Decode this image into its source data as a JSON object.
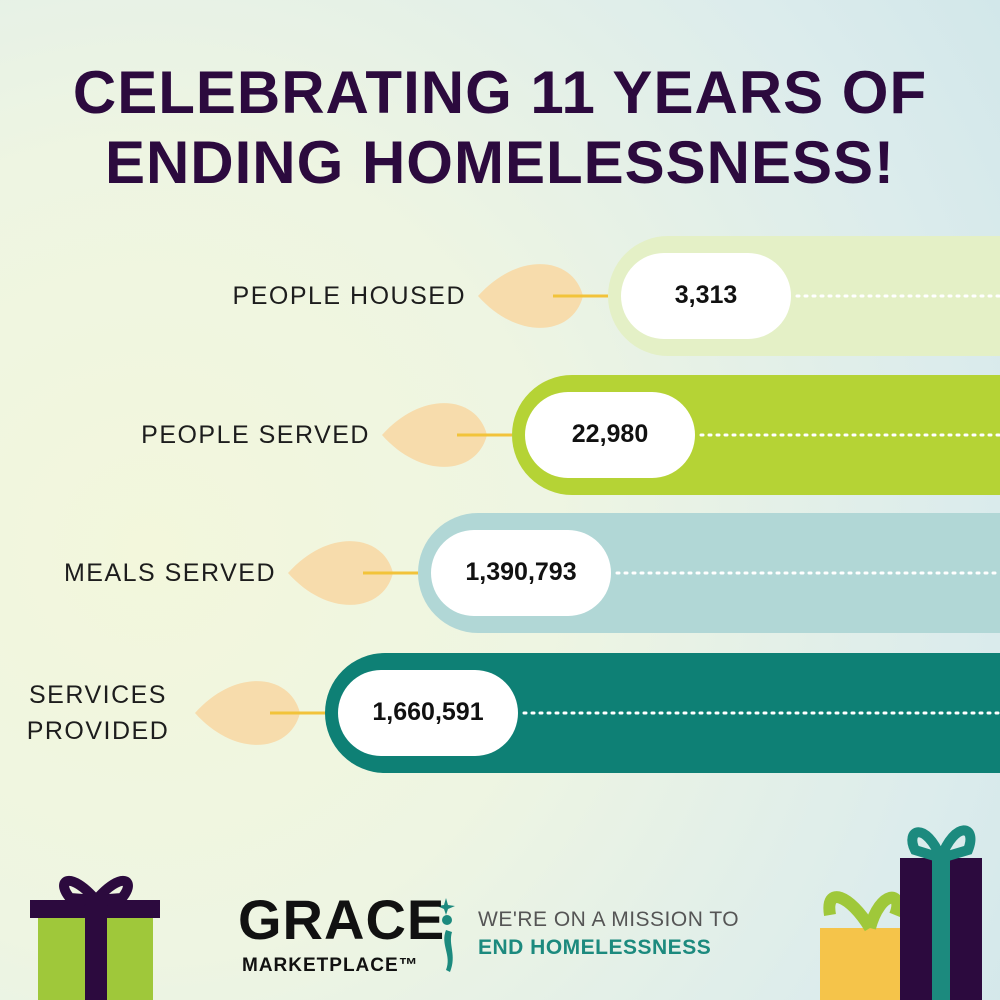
{
  "title": [
    "CELEBRATING 11 YEARS OF",
    "ENDING HOMELESSNESS!"
  ],
  "stats": [
    {
      "label": "PEOPLE HOUSED",
      "value": "3,313"
    },
    {
      "label": "PEOPLE SERVED",
      "value": "22,980"
    },
    {
      "label": "MEALS SERVED",
      "value": "1,390,793"
    },
    {
      "label": "SERVICES PROVIDED",
      "value": "1,660,591"
    }
  ],
  "logo": {
    "name": "GRACE",
    "sub": "MARKETPLACE™"
  },
  "tagline": {
    "line1": "WE'RE ON A MISSION TO",
    "line2": "END HOMELESSNESS"
  }
}
